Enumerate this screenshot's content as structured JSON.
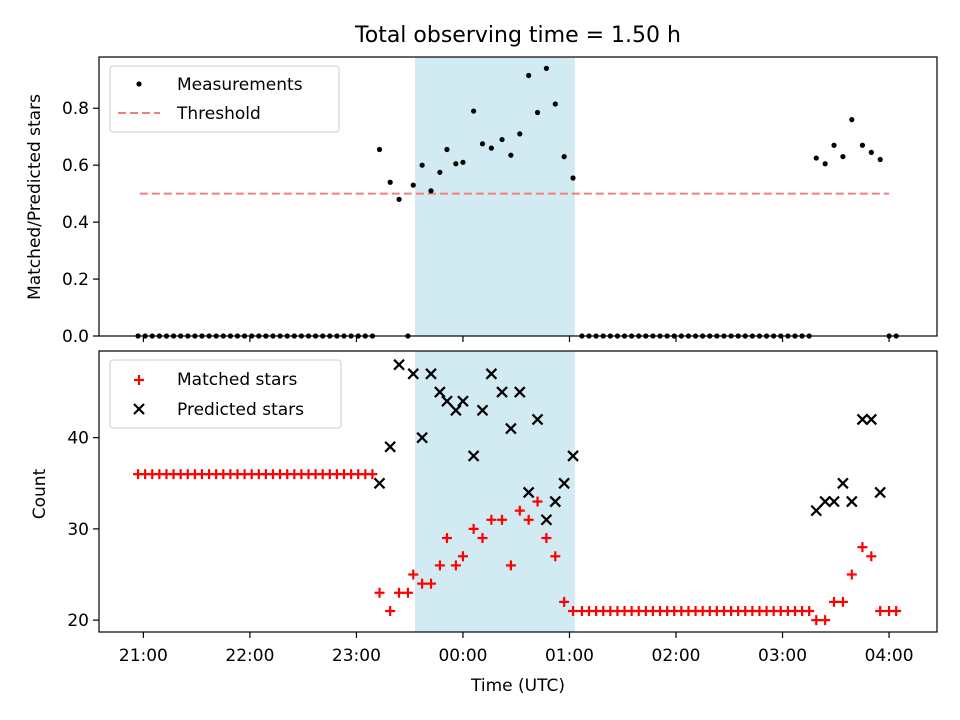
{
  "title": "Total observing time = 1.50 h",
  "xlabel": "Time (UTC)",
  "x_ticks": [
    "21:00",
    "22:00",
    "23:00",
    "00:00",
    "01:00",
    "02:00",
    "03:00",
    "04:00"
  ],
  "colors": {
    "measurements": "#000000",
    "threshold": "#f08080",
    "matched": "#ff0000",
    "predicted": "#000000",
    "shade": "#add8e6"
  },
  "chart_data": [
    {
      "type": "scatter",
      "ylabel": "Matched/Predicted stars",
      "xlim": [
        "20:35",
        "04:27"
      ],
      "ylim": [
        0,
        0.98
      ],
      "y_ticks": [
        "0.0",
        "0.2",
        "0.4",
        "0.6",
        "0.8"
      ],
      "shaded_interval": [
        "23:33",
        "01:03"
      ],
      "legend": {
        "placement": "upper-left",
        "entries": [
          {
            "label": "Measurements",
            "marker": "dot"
          },
          {
            "label": "Threshold",
            "marker": "dashed-line"
          }
        ]
      },
      "threshold": {
        "value": 0.5,
        "x_range": [
          "20:58",
          "04:00"
        ]
      },
      "series": [
        {
          "name": "Measurements",
          "points": [
            [
              "20:57",
              0
            ],
            [
              "21:01",
              0
            ],
            [
              "21:05",
              0
            ],
            [
              "21:09",
              0
            ],
            [
              "21:13",
              0
            ],
            [
              "21:17",
              0
            ],
            [
              "21:21",
              0
            ],
            [
              "21:25",
              0
            ],
            [
              "21:29",
              0
            ],
            [
              "21:33",
              0
            ],
            [
              "21:37",
              0
            ],
            [
              "21:41",
              0
            ],
            [
              "21:45",
              0
            ],
            [
              "21:49",
              0
            ],
            [
              "21:53",
              0
            ],
            [
              "21:57",
              0
            ],
            [
              "22:01",
              0
            ],
            [
              "22:05",
              0
            ],
            [
              "22:09",
              0
            ],
            [
              "22:13",
              0
            ],
            [
              "22:17",
              0
            ],
            [
              "22:21",
              0
            ],
            [
              "22:25",
              0
            ],
            [
              "22:29",
              0
            ],
            [
              "22:33",
              0
            ],
            [
              "22:37",
              0
            ],
            [
              "22:41",
              0
            ],
            [
              "22:45",
              0
            ],
            [
              "22:49",
              0
            ],
            [
              "22:53",
              0
            ],
            [
              "22:57",
              0
            ],
            [
              "23:01",
              0
            ],
            [
              "23:05",
              0
            ],
            [
              "23:09",
              0
            ],
            [
              "23:13",
              0.655
            ],
            [
              "23:19",
              0.54
            ],
            [
              "23:24",
              0.48
            ],
            [
              "23:29",
              0
            ],
            [
              "23:32",
              0.53
            ],
            [
              "23:37",
              0.6
            ],
            [
              "23:42",
              0.51
            ],
            [
              "23:47",
              0.575
            ],
            [
              "23:51",
              0.655
            ],
            [
              "23:56",
              0.605
            ],
            [
              "24:00",
              0.61
            ],
            [
              "24:06",
              0.79
            ],
            [
              "24:11",
              0.675
            ],
            [
              "24:16",
              0.66
            ],
            [
              "24:22",
              0.69
            ],
            [
              "24:27",
              0.635
            ],
            [
              "24:32",
              0.71
            ],
            [
              "24:37",
              0.915
            ],
            [
              "24:42",
              0.785
            ],
            [
              "24:47",
              0.94
            ],
            [
              "24:52",
              0.815
            ],
            [
              "24:57",
              0.63
            ],
            [
              "25:02",
              0.555
            ],
            [
              "25:07",
              0
            ],
            [
              "25:11",
              0
            ],
            [
              "25:15",
              0
            ],
            [
              "25:19",
              0
            ],
            [
              "25:23",
              0
            ],
            [
              "25:27",
              0
            ],
            [
              "25:31",
              0
            ],
            [
              "25:35",
              0
            ],
            [
              "25:39",
              0
            ],
            [
              "25:43",
              0
            ],
            [
              "25:47",
              0
            ],
            [
              "25:51",
              0
            ],
            [
              "25:55",
              0
            ],
            [
              "25:59",
              0
            ],
            [
              "26:03",
              0
            ],
            [
              "26:07",
              0
            ],
            [
              "26:11",
              0
            ],
            [
              "26:15",
              0
            ],
            [
              "26:19",
              0
            ],
            [
              "26:23",
              0
            ],
            [
              "26:27",
              0
            ],
            [
              "26:31",
              0
            ],
            [
              "26:35",
              0
            ],
            [
              "26:39",
              0
            ],
            [
              "26:43",
              0
            ],
            [
              "26:47",
              0
            ],
            [
              "26:51",
              0
            ],
            [
              "26:55",
              0
            ],
            [
              "26:59",
              0
            ],
            [
              "27:03",
              0
            ],
            [
              "27:07",
              0
            ],
            [
              "27:11",
              0
            ],
            [
              "27:15",
              0
            ],
            [
              "27:19",
              0.625
            ],
            [
              "27:24",
              0.605
            ],
            [
              "27:29",
              0.67
            ],
            [
              "27:34",
              0.63
            ],
            [
              "27:39",
              0.76
            ],
            [
              "27:45",
              0.67
            ],
            [
              "27:50",
              0.645
            ],
            [
              "27:55",
              0.62
            ],
            [
              "28:00",
              0
            ],
            [
              "28:04",
              0
            ]
          ]
        }
      ]
    },
    {
      "type": "scatter",
      "ylabel": "Count",
      "xlim": [
        "20:35",
        "04:27"
      ],
      "ylim": [
        18.7,
        49.5
      ],
      "y_ticks": [
        "20",
        "30",
        "40"
      ],
      "shaded_interval": [
        "23:33",
        "01:03"
      ],
      "legend": {
        "placement": "upper-left",
        "entries": [
          {
            "label": "Matched stars",
            "marker": "plus"
          },
          {
            "label": "Predicted stars",
            "marker": "x"
          }
        ]
      },
      "series": [
        {
          "name": "Matched stars",
          "points": [
            [
              "20:57",
              36
            ],
            [
              "21:01",
              36
            ],
            [
              "21:05",
              36
            ],
            [
              "21:09",
              36
            ],
            [
              "21:13",
              36
            ],
            [
              "21:17",
              36
            ],
            [
              "21:21",
              36
            ],
            [
              "21:25",
              36
            ],
            [
              "21:29",
              36
            ],
            [
              "21:33",
              36
            ],
            [
              "21:37",
              36
            ],
            [
              "21:41",
              36
            ],
            [
              "21:45",
              36
            ],
            [
              "21:49",
              36
            ],
            [
              "21:53",
              36
            ],
            [
              "21:57",
              36
            ],
            [
              "22:01",
              36
            ],
            [
              "22:05",
              36
            ],
            [
              "22:09",
              36
            ],
            [
              "22:13",
              36
            ],
            [
              "22:17",
              36
            ],
            [
              "22:21",
              36
            ],
            [
              "22:25",
              36
            ],
            [
              "22:29",
              36
            ],
            [
              "22:33",
              36
            ],
            [
              "22:37",
              36
            ],
            [
              "22:41",
              36
            ],
            [
              "22:45",
              36
            ],
            [
              "22:49",
              36
            ],
            [
              "22:53",
              36
            ],
            [
              "22:57",
              36
            ],
            [
              "23:01",
              36
            ],
            [
              "23:05",
              36
            ],
            [
              "23:09",
              36
            ],
            [
              "23:13",
              23
            ],
            [
              "23:19",
              21
            ],
            [
              "23:24",
              23
            ],
            [
              "23:29",
              23
            ],
            [
              "23:32",
              25
            ],
            [
              "23:37",
              24
            ],
            [
              "23:42",
              24
            ],
            [
              "23:47",
              26
            ],
            [
              "23:51",
              29
            ],
            [
              "23:56",
              26
            ],
            [
              "24:00",
              27
            ],
            [
              "24:06",
              30
            ],
            [
              "24:11",
              29
            ],
            [
              "24:16",
              31
            ],
            [
              "24:22",
              31
            ],
            [
              "24:27",
              26
            ],
            [
              "24:32",
              32
            ],
            [
              "24:37",
              31
            ],
            [
              "24:42",
              33
            ],
            [
              "24:47",
              29
            ],
            [
              "24:52",
              27
            ],
            [
              "24:57",
              22
            ],
            [
              "25:02",
              21
            ],
            [
              "25:07",
              21
            ],
            [
              "25:11",
              21
            ],
            [
              "25:15",
              21
            ],
            [
              "25:19",
              21
            ],
            [
              "25:23",
              21
            ],
            [
              "25:27",
              21
            ],
            [
              "25:31",
              21
            ],
            [
              "25:35",
              21
            ],
            [
              "25:39",
              21
            ],
            [
              "25:43",
              21
            ],
            [
              "25:47",
              21
            ],
            [
              "25:51",
              21
            ],
            [
              "25:55",
              21
            ],
            [
              "25:59",
              21
            ],
            [
              "26:03",
              21
            ],
            [
              "26:07",
              21
            ],
            [
              "26:11",
              21
            ],
            [
              "26:15",
              21
            ],
            [
              "26:19",
              21
            ],
            [
              "26:23",
              21
            ],
            [
              "26:27",
              21
            ],
            [
              "26:31",
              21
            ],
            [
              "26:35",
              21
            ],
            [
              "26:39",
              21
            ],
            [
              "26:43",
              21
            ],
            [
              "26:47",
              21
            ],
            [
              "26:51",
              21
            ],
            [
              "26:55",
              21
            ],
            [
              "26:59",
              21
            ],
            [
              "27:03",
              21
            ],
            [
              "27:07",
              21
            ],
            [
              "27:11",
              21
            ],
            [
              "27:15",
              21
            ],
            [
              "27:19",
              20
            ],
            [
              "27:24",
              20
            ],
            [
              "27:29",
              22
            ],
            [
              "27:34",
              22
            ],
            [
              "27:39",
              25
            ],
            [
              "27:45",
              28
            ],
            [
              "27:50",
              27
            ],
            [
              "27:55",
              21
            ],
            [
              "28:00",
              21
            ],
            [
              "28:04",
              21
            ]
          ]
        },
        {
          "name": "Predicted stars",
          "points": [
            [
              "23:13",
              35
            ],
            [
              "23:19",
              39
            ],
            [
              "23:24",
              48
            ],
            [
              "23:32",
              47
            ],
            [
              "23:37",
              40
            ],
            [
              "23:42",
              47
            ],
            [
              "23:47",
              45
            ],
            [
              "23:51",
              44
            ],
            [
              "23:56",
              43
            ],
            [
              "24:00",
              44
            ],
            [
              "24:06",
              38
            ],
            [
              "24:11",
              43
            ],
            [
              "24:16",
              47
            ],
            [
              "24:22",
              45
            ],
            [
              "24:27",
              41
            ],
            [
              "24:32",
              45
            ],
            [
              "24:37",
              34
            ],
            [
              "24:42",
              42
            ],
            [
              "24:47",
              31
            ],
            [
              "24:52",
              33
            ],
            [
              "24:57",
              35
            ],
            [
              "25:02",
              38
            ],
            [
              "27:19",
              32
            ],
            [
              "27:24",
              33
            ],
            [
              "27:29",
              33
            ],
            [
              "27:34",
              35
            ],
            [
              "27:39",
              33
            ],
            [
              "27:45",
              42
            ],
            [
              "27:50",
              42
            ],
            [
              "27:55",
              34
            ]
          ]
        }
      ]
    }
  ]
}
